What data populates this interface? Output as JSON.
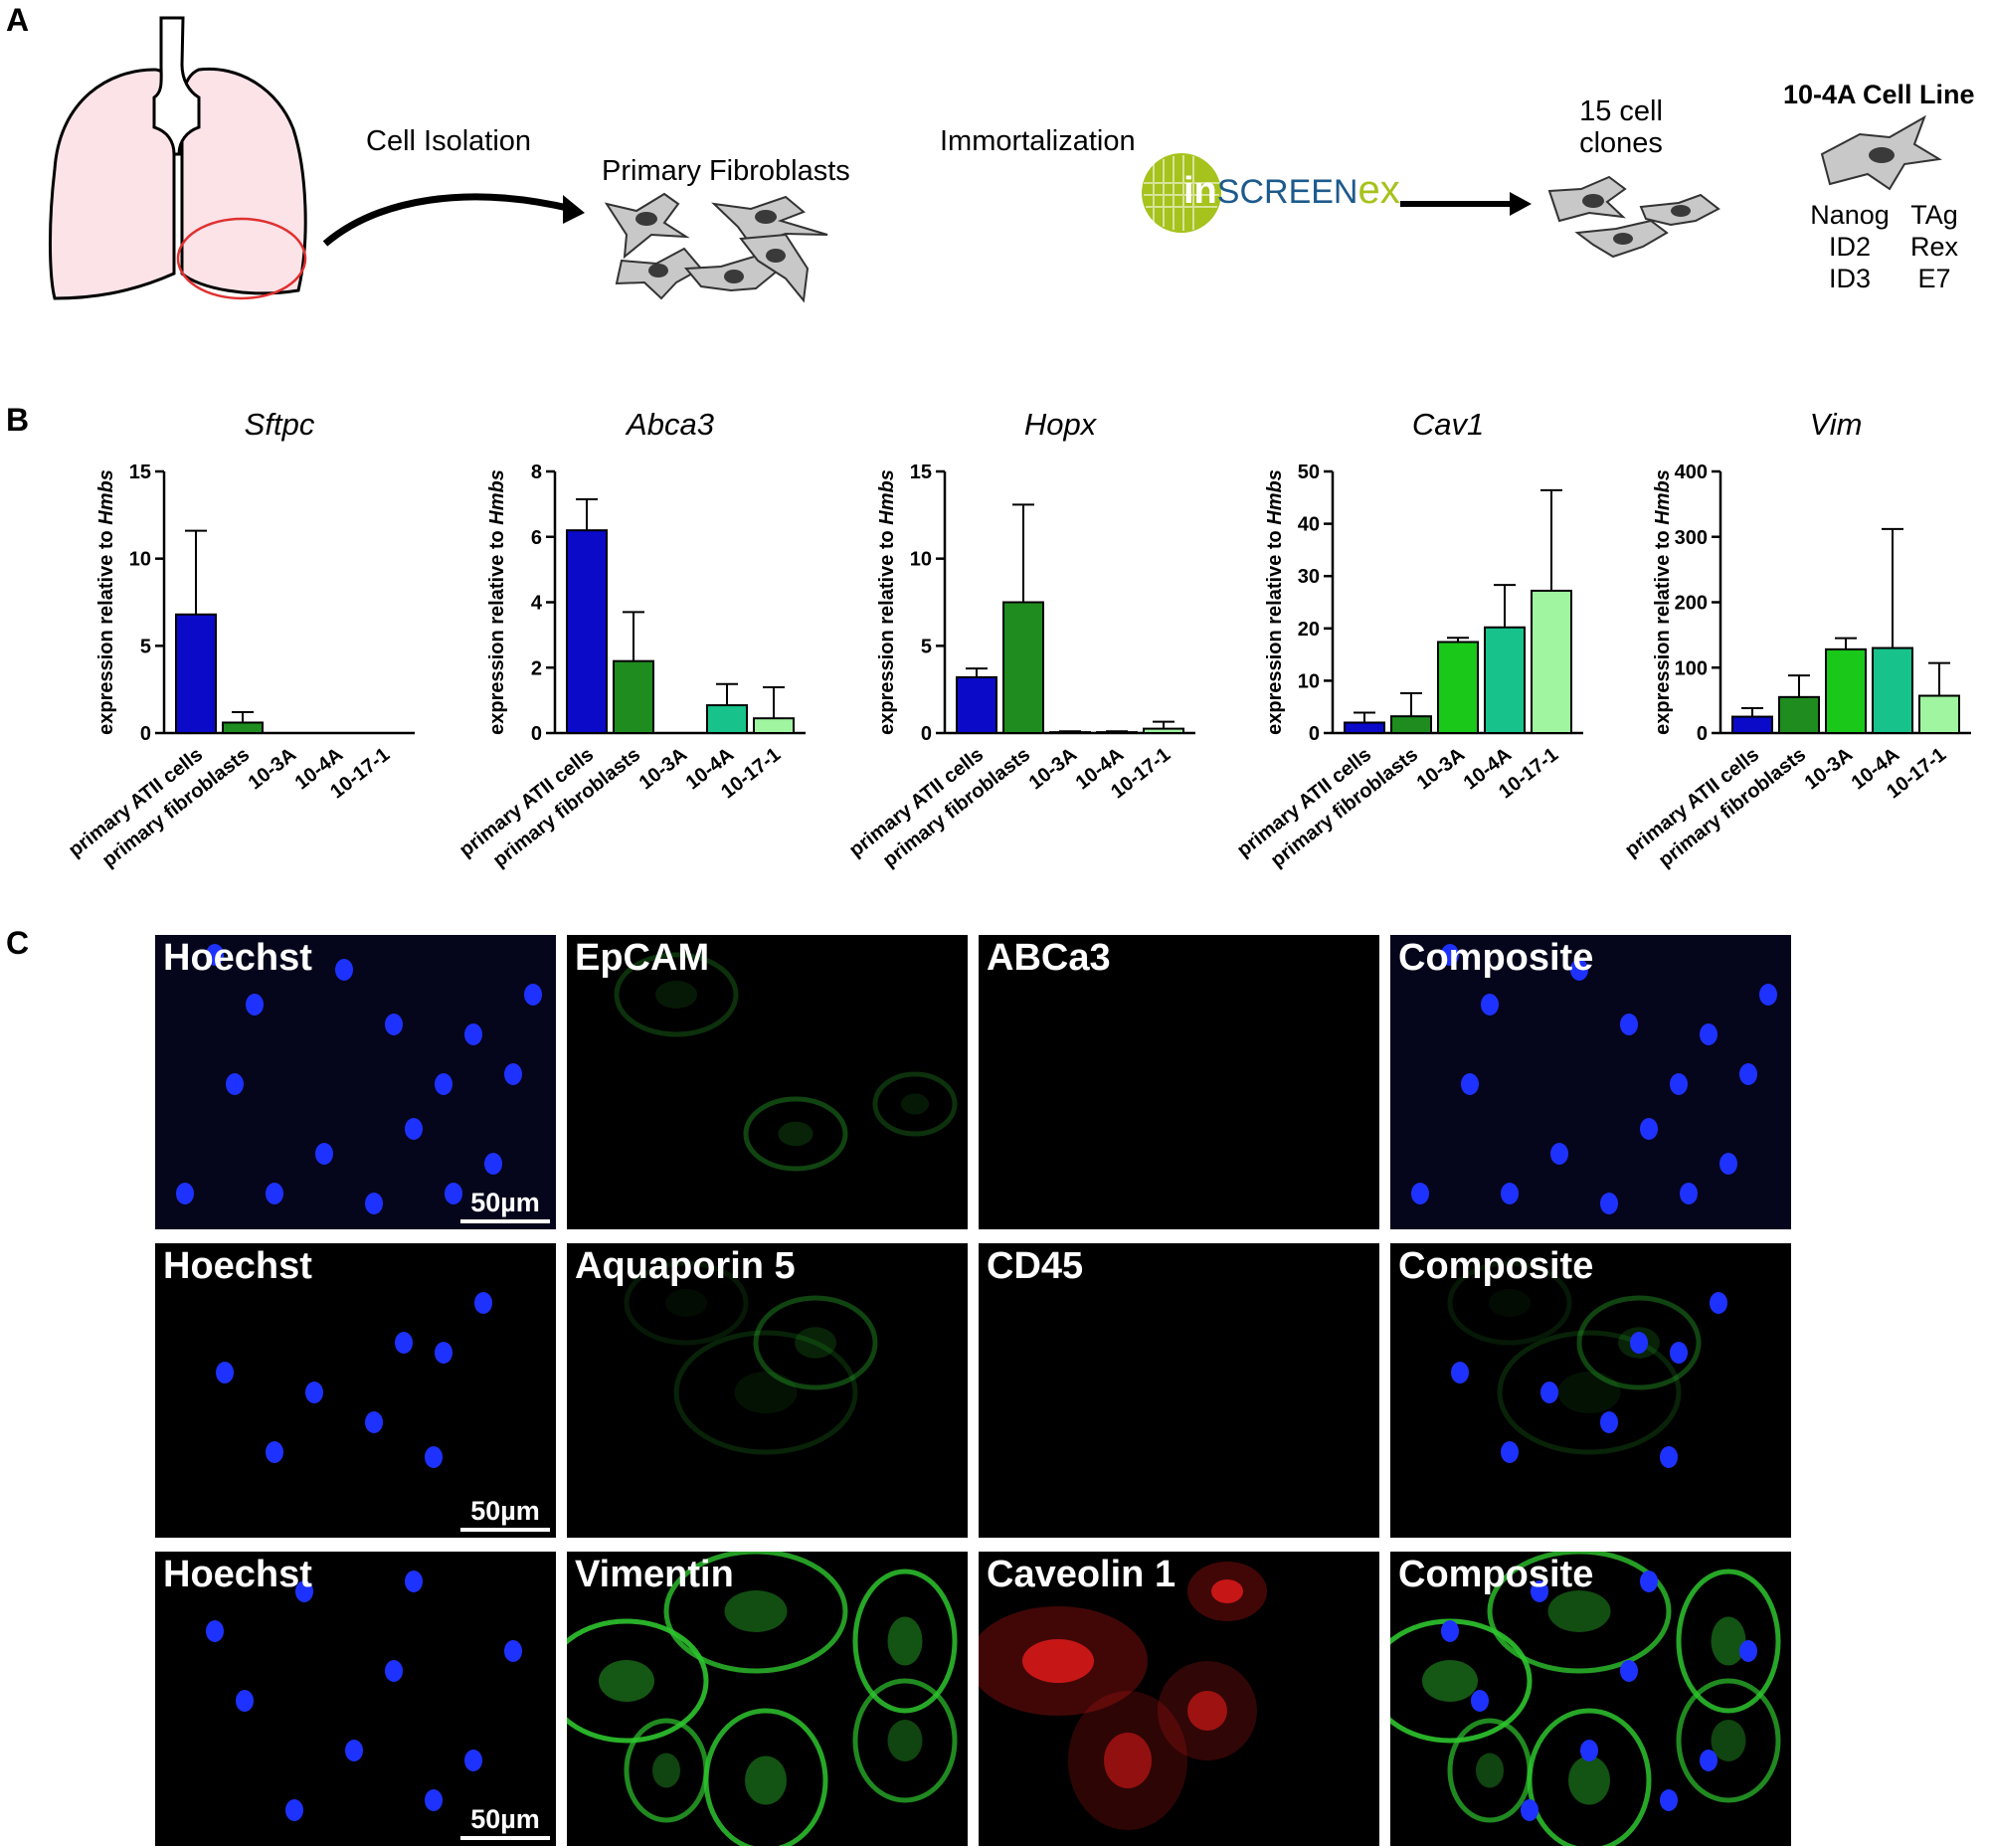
{
  "panels": {
    "a": "A",
    "b": "B",
    "c": "C"
  },
  "panel_a": {
    "cell_isolation": "Cell Isolation",
    "primary_fibroblasts": "Primary Fibroblasts",
    "immortalization": "Immortalization",
    "logo_in": "in",
    "logo_screen": "SCREEN",
    "logo_ex": "ex",
    "clones_line1": "15 cell",
    "clones_line2": "clones",
    "cell_line_title": "10-4A Cell Line",
    "genes": [
      "Nanog",
      "TAg",
      "ID2",
      "Rex",
      "ID3",
      "E7"
    ],
    "colors": {
      "lung_fill": "#fbe3e8",
      "circle": "#e03030",
      "logo_green": "#a6c21c",
      "logo_blue": "#1d5a8c",
      "cell_fill": "#c8c8c8"
    }
  },
  "chart_data": [
    {
      "type": "bar",
      "title": "Sftpc",
      "ylabel_prefix": "expression relative to ",
      "ylabel_italic": "Hmbs",
      "categories": [
        "primary ATII cells",
        "primary fibroblasts",
        "10-3A",
        "10-4A",
        "10-17-1"
      ],
      "values": [
        6.8,
        0.6,
        0,
        0,
        0
      ],
      "errors": [
        4.8,
        0.6,
        0,
        0,
        0
      ],
      "ylim": [
        0,
        15
      ],
      "yticks": [
        "0",
        "5",
        "10",
        "15"
      ],
      "tick_values": [
        0,
        5,
        10,
        15
      ],
      "colors": [
        "#0a0ac8",
        "#1e8c1e",
        "#19c819",
        "#17c38a",
        "#a0f5a0"
      ]
    },
    {
      "type": "bar",
      "title": "Abca3",
      "ylabel_prefix": "expression relative to ",
      "ylabel_italic": "Hmbs",
      "categories": [
        "primary ATII cells",
        "primary fibroblasts",
        "10-3A",
        "10-4A",
        "10-17-1"
      ],
      "values": [
        6.2,
        2.2,
        0,
        0.85,
        0.45
      ],
      "errors": [
        0.95,
        1.5,
        0,
        0.65,
        0.95
      ],
      "ylim": [
        0,
        8
      ],
      "yticks": [
        "0",
        "2",
        "4",
        "6",
        "8"
      ],
      "tick_values": [
        0,
        2,
        4,
        6,
        8
      ],
      "colors": [
        "#0a0ac8",
        "#1e8c1e",
        "#19c819",
        "#17c38a",
        "#a0f5a0"
      ]
    },
    {
      "type": "bar",
      "title": "Hopx",
      "ylabel_prefix": "expression relative to ",
      "ylabel_italic": "Hmbs",
      "categories": [
        "primary ATII cells",
        "primary fibroblasts",
        "10-3A",
        "10-4A",
        "10-17-1"
      ],
      "values": [
        3.2,
        7.5,
        0.05,
        0.05,
        0.25
      ],
      "errors": [
        0.5,
        5.6,
        0.05,
        0.05,
        0.4
      ],
      "ylim": [
        0,
        15
      ],
      "yticks": [
        "0",
        "5",
        "10",
        "15"
      ],
      "tick_values": [
        0,
        5,
        10,
        15
      ],
      "colors": [
        "#0a0ac8",
        "#1e8c1e",
        "#19c819",
        "#17c38a",
        "#a0f5a0"
      ]
    },
    {
      "type": "bar",
      "title": "Cav1",
      "ylabel_prefix": "expression relative to ",
      "ylabel_italic": "Hmbs",
      "categories": [
        "primary ATII cells",
        "primary fibroblasts",
        "10-3A",
        "10-4A",
        "10-17-1"
      ],
      "values": [
        2,
        3.2,
        17.4,
        20.2,
        27.2
      ],
      "errors": [
        1.9,
        4.4,
        0.8,
        8.1,
        19.2
      ],
      "ylim": [
        0,
        50
      ],
      "yticks": [
        "0",
        "10",
        "20",
        "30",
        "40",
        "50"
      ],
      "tick_values": [
        0,
        10,
        20,
        30,
        40,
        50
      ],
      "colors": [
        "#0a0ac8",
        "#1e8c1e",
        "#19c819",
        "#17c38a",
        "#a0f5a0"
      ]
    },
    {
      "type": "bar",
      "title": "Vim",
      "ylabel_prefix": "expression relative to ",
      "ylabel_italic": "Hmbs",
      "categories": [
        "primary ATII cells",
        "primary fibroblasts",
        "10-3A",
        "10-4A",
        "10-17-1"
      ],
      "values": [
        25,
        55,
        128,
        130,
        57
      ],
      "errors": [
        13,
        33,
        17,
        182,
        50
      ],
      "ylim": [
        0,
        400
      ],
      "yticks": [
        "0",
        "100",
        "200",
        "300",
        "400"
      ],
      "tick_values": [
        0,
        100,
        200,
        300,
        400
      ],
      "colors": [
        "#0a0ac8",
        "#1e8c1e",
        "#19c819",
        "#17c38a",
        "#a0f5a0"
      ]
    }
  ],
  "panel_c": {
    "rows": [
      {
        "labels": [
          "Hoechst",
          "EpCAM",
          "ABCa3",
          "Composite"
        ],
        "scale": "50µm"
      },
      {
        "labels": [
          "Hoechst",
          "Aquaporin 5",
          "CD45",
          "Composite"
        ],
        "scale": "50µm"
      },
      {
        "labels": [
          "Hoechst",
          "Vimentin",
          "Caveolin 1",
          "Composite"
        ],
        "scale": "50µm"
      }
    ],
    "colors": {
      "nucleus": "#1e32ff",
      "green": "#2ec42e",
      "red": "#e81a1a"
    }
  }
}
